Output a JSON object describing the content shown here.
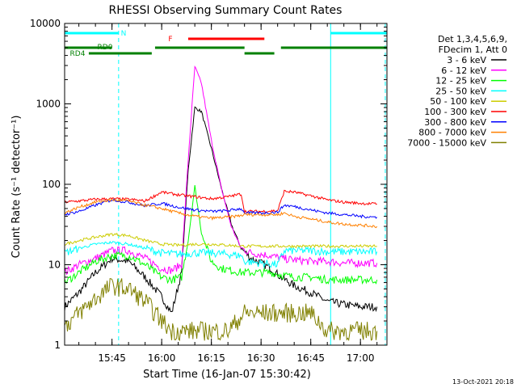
{
  "chart_data": {
    "type": "line",
    "title": "RHESSI Observing Summary Count Rates",
    "xlabel": "Start Time (16-Jan-07 15:30:42)",
    "ylabel": "Count Rate (s⁻¹ detector⁻¹)",
    "y_scale": "log",
    "ylim": [
      1,
      10000
    ],
    "xlim": [
      "15:30:42",
      "17:08:00"
    ],
    "x_ticks": [
      "15:45",
      "16:00",
      "16:15",
      "16:30",
      "16:45",
      "17:00"
    ],
    "y_ticks": [
      "1",
      "10",
      "100",
      "1000",
      "10000"
    ],
    "grid": false,
    "legend_position": "top-right, outside plot",
    "legend_header": [
      "Det 1,3,4,5,6,9,",
      "FDecim 1, Att 0"
    ],
    "footer_date": "13-Oct-2021 20:18",
    "series": [
      {
        "name": "3 - 6 keV",
        "color": "#000000",
        "x": [
          "15:30:42",
          "15:35",
          "15:40",
          "15:45",
          "15:50",
          "15:55",
          "16:00",
          "16:03",
          "16:06",
          "16:08",
          "16:10",
          "16:12",
          "16:15",
          "16:18",
          "16:21",
          "16:24",
          "16:27",
          "16:30",
          "16:33",
          "16:36",
          "16:40",
          "16:45",
          "16:50",
          "16:55",
          "17:00",
          "17:05"
        ],
        "y": [
          3,
          4.5,
          8,
          12,
          11,
          7,
          4,
          2.5,
          8,
          150,
          900,
          800,
          280,
          90,
          32,
          16,
          12,
          10.5,
          9,
          7,
          5.5,
          4.5,
          3.5,
          3.2,
          3,
          3
        ]
      },
      {
        "name": "6 - 12 keV",
        "color": "#ff00ff",
        "x": [
          "15:30:42",
          "15:35",
          "15:40",
          "15:45",
          "15:50",
          "15:55",
          "16:00",
          "16:03",
          "16:06",
          "16:08",
          "16:10",
          "16:12",
          "16:15",
          "16:18",
          "16:21",
          "16:24",
          "16:27",
          "16:30",
          "16:33",
          "16:36",
          "16:40",
          "16:45",
          "16:50",
          "16:55",
          "17:00",
          "17:05"
        ],
        "y": [
          8,
          10,
          12,
          15,
          15,
          12,
          9,
          8.5,
          10,
          200,
          2900,
          1800,
          350,
          90,
          30,
          16,
          14,
          13.5,
          13,
          12,
          11.5,
          11,
          11,
          10.5,
          10.5,
          10.5
        ]
      },
      {
        "name": "12 - 25 keV",
        "color": "#00ff00",
        "x": [
          "15:30:42",
          "15:35",
          "15:40",
          "15:45",
          "15:50",
          "15:55",
          "16:00",
          "16:03",
          "16:06",
          "16:08",
          "16:10",
          "16:12",
          "16:15",
          "16:18",
          "16:21",
          "16:24",
          "16:27",
          "16:30",
          "16:33",
          "16:36",
          "16:40",
          "16:45",
          "16:50",
          "16:55",
          "17:00",
          "17:05"
        ],
        "y": [
          6,
          8,
          11,
          13,
          13,
          10,
          7,
          6.5,
          7,
          20,
          95,
          25,
          11,
          9,
          8.5,
          8,
          8,
          8,
          8,
          7.5,
          7,
          7,
          6.5,
          6.5,
          6.5,
          6.5
        ]
      },
      {
        "name": "25 - 50 keV",
        "color": "#00ffff",
        "x": [
          "15:30:42",
          "15:35",
          "15:40",
          "15:45",
          "15:50",
          "15:55",
          "16:00",
          "16:05",
          "16:10",
          "16:15",
          "16:20",
          "16:24",
          "16:25",
          "16:30",
          "16:35",
          "16:37",
          "16:40",
          "16:45",
          "16:50",
          "16:55",
          "17:00",
          "17:05"
        ],
        "y": [
          14,
          16,
          18,
          19,
          18,
          16,
          14,
          13.5,
          14,
          14,
          13.5,
          13,
          11,
          10.5,
          10,
          15,
          15,
          15,
          14.5,
          14.5,
          14.5,
          14.5
        ]
      },
      {
        "name": "50 - 100 keV",
        "color": "#cccc00",
        "x": [
          "15:30:42",
          "15:35",
          "15:40",
          "15:45",
          "15:50",
          "15:55",
          "16:00",
          "16:05",
          "16:10",
          "16:15",
          "16:20",
          "16:24",
          "16:25",
          "16:30",
          "16:35",
          "16:37",
          "16:40",
          "16:45",
          "16:50",
          "16:55",
          "17:00",
          "17:05"
        ],
        "y": [
          18,
          20,
          22,
          24,
          23,
          20,
          18,
          17.5,
          18,
          18,
          17.5,
          17,
          17,
          17,
          17,
          17,
          17,
          17,
          17,
          17,
          17,
          17
        ]
      },
      {
        "name": "100 - 300 keV",
        "color": "#ff0000",
        "x": [
          "15:30:42",
          "15:35",
          "15:40",
          "15:45",
          "15:50",
          "15:55",
          "16:00",
          "16:05",
          "16:10",
          "16:15",
          "16:20",
          "16:24",
          "16:25",
          "16:30",
          "16:35",
          "16:37",
          "16:40",
          "16:45",
          "16:50",
          "16:55",
          "17:00",
          "17:05"
        ],
        "y": [
          60,
          62,
          65,
          66,
          65,
          62,
          80,
          74,
          70,
          66,
          70,
          76,
          46,
          46,
          47,
          82,
          80,
          72,
          64,
          60,
          58,
          57
        ]
      },
      {
        "name": "300 - 800 keV",
        "color": "#0000ff",
        "x": [
          "15:30:42",
          "15:35",
          "15:40",
          "15:45",
          "15:50",
          "15:55",
          "16:00",
          "16:05",
          "16:10",
          "16:15",
          "16:20",
          "16:24",
          "16:25",
          "16:30",
          "16:35",
          "16:37",
          "16:40",
          "16:45",
          "16:50",
          "16:55",
          "17:00",
          "17:05"
        ],
        "y": [
          42,
          46,
          55,
          64,
          60,
          54,
          58,
          52,
          48,
          46,
          47,
          50,
          44,
          44,
          45,
          55,
          53,
          48,
          44,
          42,
          40,
          39
        ]
      },
      {
        "name": "800 - 7000 keV",
        "color": "#ff8000",
        "x": [
          "15:30:42",
          "15:35",
          "15:40",
          "15:45",
          "15:50",
          "15:55",
          "16:00",
          "16:05",
          "16:10",
          "16:15",
          "16:20",
          "16:24",
          "16:25",
          "16:30",
          "16:35",
          "16:37",
          "16:40",
          "16:45",
          "16:50",
          "16:55",
          "17:00",
          "17:05"
        ],
        "y": [
          44,
          52,
          60,
          64,
          62,
          55,
          50,
          44,
          40,
          38,
          39,
          41,
          42,
          42,
          42,
          44,
          40,
          37,
          34,
          32,
          31,
          30
        ]
      },
      {
        "name": "7000 - 15000 keV",
        "color": "#808000",
        "x": [
          "15:30:42",
          "15:35",
          "15:40",
          "15:45",
          "15:50",
          "15:55",
          "16:00",
          "16:03",
          "16:06",
          "16:10",
          "16:15",
          "16:20",
          "16:25",
          "16:30",
          "16:35",
          "16:40",
          "16:45",
          "16:50",
          "16:55",
          "17:00",
          "17:05"
        ],
        "y": [
          1.7,
          2.5,
          3.8,
          5.5,
          5,
          3.5,
          2,
          1.5,
          1.5,
          1.5,
          1.5,
          1.5,
          2.5,
          2.5,
          2.5,
          2.5,
          2.5,
          1.5,
          1.5,
          1.5,
          1.5
        ]
      }
    ],
    "state_bars": [
      {
        "label": "N",
        "color": "#00ffff",
        "segments": [
          [
            "15:30:42",
            "15:47:00"
          ],
          [
            "16:51:00",
            "17:08:00"
          ]
        ]
      },
      {
        "label": "F",
        "color": "#ff0000",
        "segments": [
          [
            "16:08:00",
            "16:31:00"
          ]
        ]
      },
      {
        "label": "RD0",
        "color": "#008000",
        "segments": [
          [
            "15:30:42",
            "15:45:00"
          ],
          [
            "15:58:00",
            "16:25:00"
          ],
          [
            "16:36:00",
            "17:08:00"
          ]
        ]
      },
      {
        "label": "RD4",
        "color": "#008000",
        "segments": [
          [
            "15:38:00",
            "15:57:00"
          ],
          [
            "16:25:00",
            "16:34:00"
          ]
        ]
      }
    ],
    "vertical_lines": [
      {
        "time": "15:30:42",
        "style": "solid",
        "color": "#00ffff"
      },
      {
        "time": "15:47:00",
        "style": "dashed",
        "color": "#00ffff"
      },
      {
        "time": "16:51:00",
        "style": "solid",
        "color": "#00ffff"
      },
      {
        "time": "17:07:30",
        "style": "dashed",
        "color": "#00ffff"
      }
    ]
  }
}
